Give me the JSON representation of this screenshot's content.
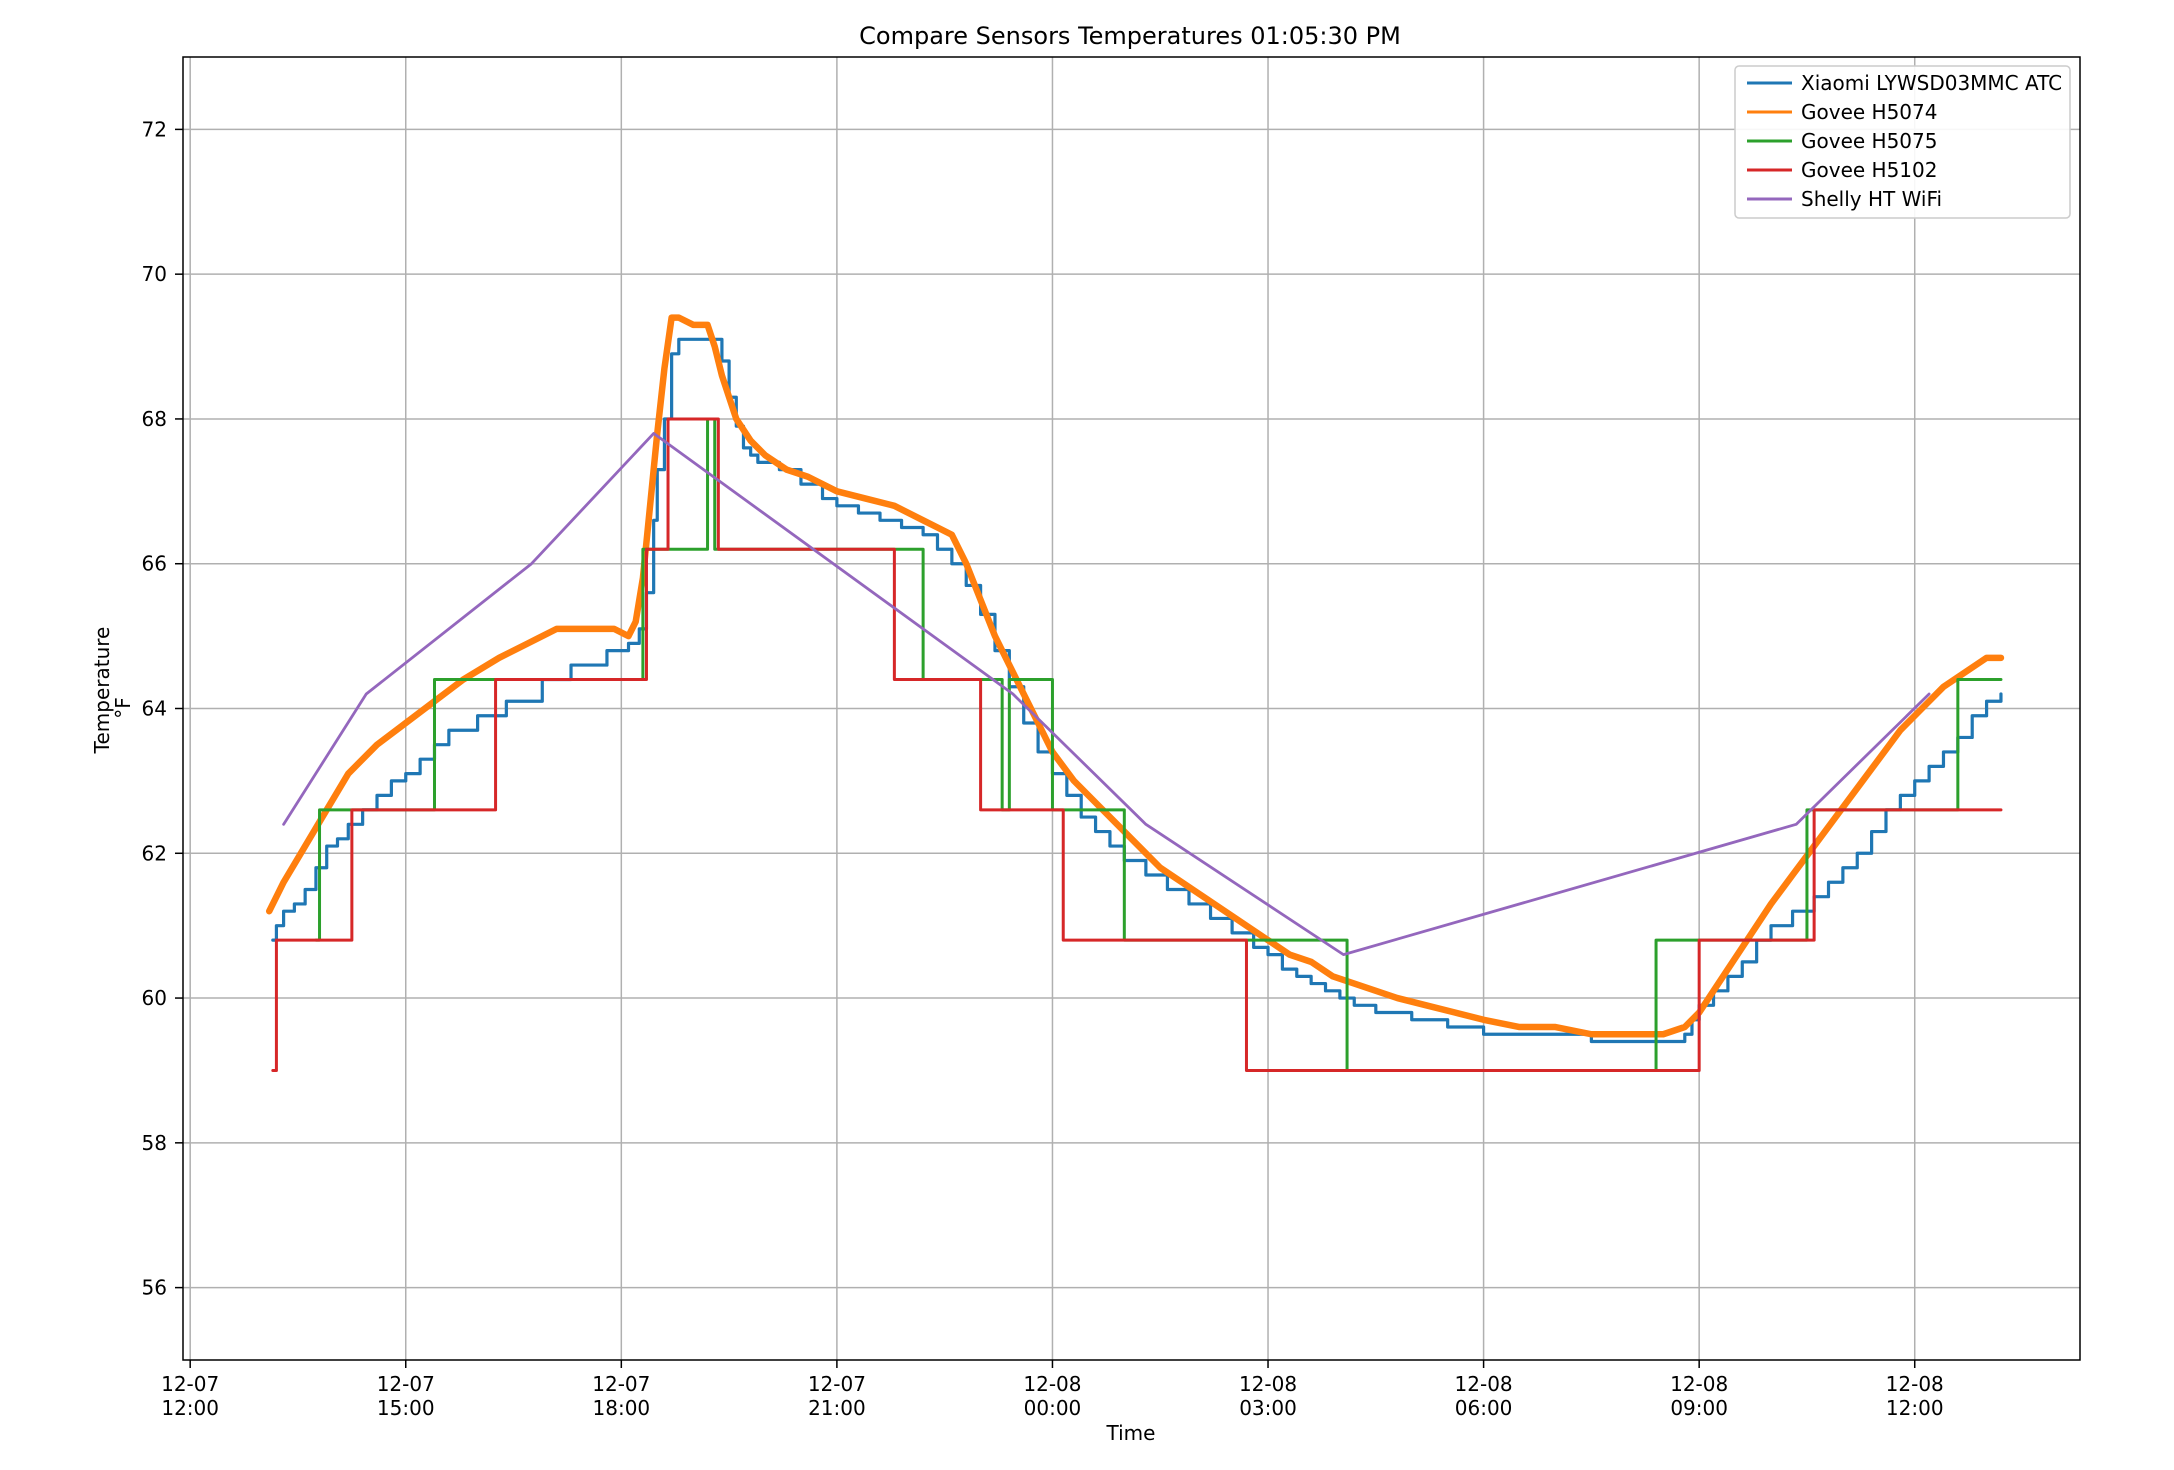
{
  "chart_data": {
    "type": "line",
    "title": "Compare Sensors Temperatures 01:05:30 PM",
    "xlabel": "Time",
    "ylabel_line1": "Temperature",
    "ylabel_line2": "°F",
    "xlim_hours": [
      -0.1,
      26.3
    ],
    "ylim": [
      55.0,
      73.0
    ],
    "grid": true,
    "legend_position": "top-right",
    "y_ticks": [
      56,
      58,
      60,
      62,
      64,
      66,
      68,
      70,
      72
    ],
    "x_ticks": [
      {
        "hours": 0,
        "date": "12-07",
        "time": "12:00"
      },
      {
        "hours": 3,
        "date": "12-07",
        "time": "15:00"
      },
      {
        "hours": 6,
        "date": "12-07",
        "time": "18:00"
      },
      {
        "hours": 9,
        "date": "12-07",
        "time": "21:00"
      },
      {
        "hours": 12,
        "date": "12-08",
        "time": "00:00"
      },
      {
        "hours": 15,
        "date": "12-08",
        "time": "03:00"
      },
      {
        "hours": 18,
        "date": "12-08",
        "time": "06:00"
      },
      {
        "hours": 21,
        "date": "12-08",
        "time": "09:00"
      },
      {
        "hours": 24,
        "date": "12-08",
        "time": "12:00"
      }
    ],
    "series": [
      {
        "name": "Xiaomi LYWSD03MMC ATC",
        "color": "#1f77b4",
        "step": true,
        "hours": [
          1.15,
          1.2,
          1.3,
          1.45,
          1.6,
          1.75,
          1.9,
          2.05,
          2.2,
          2.4,
          2.6,
          2.8,
          3.0,
          3.2,
          3.4,
          3.6,
          4.0,
          4.4,
          4.9,
          5.3,
          5.8,
          6.1,
          6.25,
          6.35,
          6.45,
          6.5,
          6.6,
          6.7,
          6.8,
          7.4,
          7.5,
          7.6,
          7.7,
          7.8,
          7.9,
          8.2,
          8.5,
          8.8,
          9.0,
          9.3,
          9.6,
          9.9,
          10.2,
          10.4,
          10.6,
          10.8,
          11.0,
          11.2,
          11.4,
          11.6,
          11.8,
          12.0,
          12.2,
          12.4,
          12.6,
          12.8,
          13.0,
          13.3,
          13.6,
          13.9,
          14.2,
          14.5,
          14.8,
          15.0,
          15.2,
          15.4,
          15.6,
          15.8,
          16.0,
          16.2,
          16.5,
          17.0,
          17.5,
          18.0,
          18.5,
          19.0,
          19.5,
          20.0,
          20.5,
          20.8,
          20.9,
          21.0,
          21.2,
          21.4,
          21.6,
          21.8,
          22.0,
          22.3,
          22.6,
          22.8,
          23.0,
          23.2,
          23.4,
          23.6,
          23.8,
          24.0,
          24.2,
          24.4,
          24.6,
          24.8,
          25.0,
          25.2
        ],
        "values": [
          60.8,
          61.0,
          61.2,
          61.3,
          61.5,
          61.8,
          62.1,
          62.2,
          62.4,
          62.6,
          62.8,
          63.0,
          63.1,
          63.3,
          63.5,
          63.7,
          63.9,
          64.1,
          64.4,
          64.6,
          64.8,
          64.9,
          65.1,
          65.6,
          66.6,
          67.3,
          68.0,
          68.9,
          69.1,
          68.8,
          68.3,
          67.9,
          67.6,
          67.5,
          67.4,
          67.3,
          67.1,
          66.9,
          66.8,
          66.7,
          66.6,
          66.5,
          66.4,
          66.2,
          66.0,
          65.7,
          65.3,
          64.8,
          64.3,
          63.8,
          63.4,
          63.1,
          62.8,
          62.5,
          62.3,
          62.1,
          61.9,
          61.7,
          61.5,
          61.3,
          61.1,
          60.9,
          60.7,
          60.6,
          60.4,
          60.3,
          60.2,
          60.1,
          60.0,
          59.9,
          59.8,
          59.7,
          59.6,
          59.5,
          59.5,
          59.5,
          59.4,
          59.4,
          59.4,
          59.5,
          59.7,
          59.9,
          60.1,
          60.3,
          60.5,
          60.8,
          61.0,
          61.2,
          61.4,
          61.6,
          61.8,
          62.0,
          62.3,
          62.6,
          62.8,
          63.0,
          63.2,
          63.4,
          63.6,
          63.9,
          64.1,
          64.2
        ]
      },
      {
        "name": "Govee H5074",
        "color": "#ff7f0e",
        "step": false,
        "hours": [
          1.1,
          1.3,
          1.6,
          1.9,
          2.2,
          2.6,
          3.0,
          3.4,
          3.8,
          4.3,
          4.7,
          5.1,
          5.5,
          5.9,
          6.1,
          6.2,
          6.3,
          6.4,
          6.5,
          6.6,
          6.7,
          6.8,
          7.0,
          7.2,
          7.3,
          7.4,
          7.5,
          7.6,
          7.8,
          8.0,
          8.3,
          8.6,
          9.0,
          9.4,
          9.8,
          10.2,
          10.4,
          10.6,
          10.8,
          11.0,
          11.2,
          11.4,
          11.6,
          11.8,
          12.0,
          12.3,
          12.6,
          12.9,
          13.2,
          13.5,
          13.8,
          14.1,
          14.4,
          14.7,
          15.0,
          15.3,
          15.6,
          15.9,
          16.2,
          16.5,
          16.8,
          17.2,
          17.6,
          18.0,
          18.5,
          19.0,
          19.5,
          20.0,
          20.5,
          20.8,
          21.0,
          21.2,
          21.4,
          21.6,
          21.8,
          22.0,
          22.3,
          22.6,
          22.9,
          23.2,
          23.5,
          23.8,
          24.1,
          24.4,
          24.7,
          25.0,
          25.2
        ],
        "values": [
          61.2,
          61.6,
          62.1,
          62.6,
          63.1,
          63.5,
          63.8,
          64.1,
          64.4,
          64.7,
          64.9,
          65.1,
          65.1,
          65.1,
          65.0,
          65.2,
          65.8,
          66.8,
          67.8,
          68.7,
          69.4,
          69.4,
          69.3,
          69.3,
          69.0,
          68.6,
          68.3,
          68.0,
          67.7,
          67.5,
          67.3,
          67.2,
          67.0,
          66.9,
          66.8,
          66.6,
          66.5,
          66.4,
          66.0,
          65.5,
          65.0,
          64.6,
          64.2,
          63.8,
          63.4,
          63.0,
          62.7,
          62.4,
          62.1,
          61.8,
          61.6,
          61.4,
          61.2,
          61.0,
          60.8,
          60.6,
          60.5,
          60.3,
          60.2,
          60.1,
          60.0,
          59.9,
          59.8,
          59.7,
          59.6,
          59.6,
          59.5,
          59.5,
          59.5,
          59.6,
          59.8,
          60.1,
          60.4,
          60.7,
          61.0,
          61.3,
          61.7,
          62.1,
          62.5,
          62.9,
          63.3,
          63.7,
          64.0,
          64.3,
          64.5,
          64.7,
          64.7
        ]
      },
      {
        "name": "Govee H5075",
        "color": "#2ca02c",
        "step": true,
        "hours": [
          1.75,
          1.8,
          3.3,
          3.4,
          4.4,
          6.25,
          6.3,
          6.6,
          7.0,
          7.2,
          7.3,
          10.0,
          10.2,
          10.8,
          11.2,
          11.3,
          11.4,
          12.0,
          12.15,
          12.9,
          13.0,
          15.0,
          15.05,
          16.0,
          16.1,
          20.3,
          20.4,
          22.3,
          22.5,
          23.1,
          24.5,
          24.6,
          25.2
        ],
        "values": [
          60.8,
          62.6,
          62.6,
          64.4,
          64.4,
          64.4,
          66.2,
          66.2,
          66.2,
          68.0,
          66.2,
          66.2,
          64.4,
          64.4,
          64.4,
          62.6,
          64.4,
          62.6,
          62.6,
          62.6,
          60.8,
          60.8,
          60.8,
          60.8,
          59.0,
          59.0,
          60.8,
          60.8,
          62.6,
          62.6,
          62.6,
          64.4,
          64.4
        ]
      },
      {
        "name": "Govee H5102",
        "color": "#d62728",
        "step": true,
        "hours": [
          1.15,
          1.2,
          2.2,
          2.25,
          2.3,
          4.2,
          4.25,
          6.3,
          6.35,
          6.6,
          6.65,
          7.3,
          7.35,
          9.7,
          9.8,
          10.9,
          11.0,
          12.1,
          12.15,
          14.6,
          14.7,
          15.5,
          20.95,
          21.0,
          22.55,
          22.6,
          25.2
        ],
        "values": [
          59.0,
          60.8,
          60.8,
          62.6,
          62.6,
          62.6,
          64.4,
          64.4,
          66.2,
          66.2,
          68.0,
          68.0,
          66.2,
          66.2,
          64.4,
          64.4,
          62.6,
          62.6,
          60.8,
          60.8,
          59.0,
          59.0,
          59.0,
          60.8,
          60.8,
          62.6,
          62.6
        ]
      },
      {
        "name": "Shelly HT WiFi",
        "color": "#9467bd",
        "step": false,
        "hours": [
          1.3,
          2.45,
          4.75,
          6.45,
          11.45,
          13.3,
          16.05,
          22.35,
          24.2
        ],
        "values": [
          62.4,
          64.2,
          66.0,
          67.8,
          64.2,
          62.4,
          60.6,
          62.4,
          64.2
        ]
      }
    ]
  }
}
